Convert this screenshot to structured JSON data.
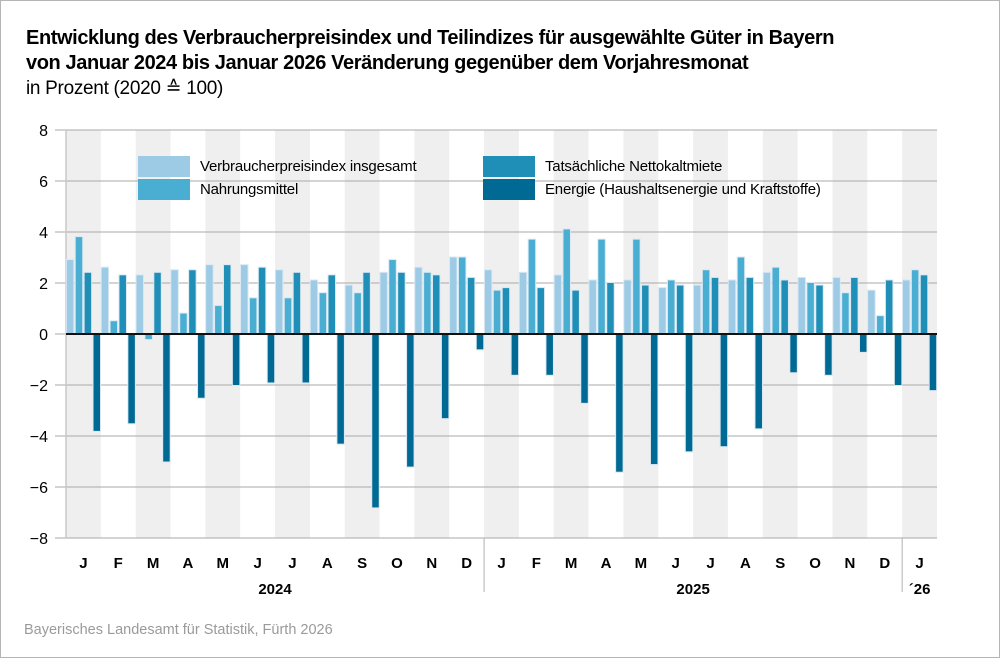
{
  "title": {
    "line1": "Entwicklung des Verbraucherpreisindex und Teilindizes für ausgewählte Güter in Bayern",
    "line2": "von Januar 2024 bis Januar 2026 Veränderung gegenüber dem Vorjahresmonat",
    "line3": "in Prozent (2020 ≙ 100)"
  },
  "footer": "Bayerisches Landesamt für Statistik, Fürth 2026",
  "colors": {
    "vpi": "#9dcbe6",
    "nahrung": "#4aaed3",
    "miete": "#1f8fb8",
    "energie": "#006a94",
    "band": "#efefef",
    "grid": "#a8a8a8",
    "zero": "#111111"
  },
  "chart_data": {
    "type": "bar",
    "title": "Entwicklung des Verbraucherpreisindex und Teilindizes für ausgewählte Güter in Bayern von Januar 2024 bis Januar 2026 Veränderung gegenüber dem Vorjahresmonat",
    "ylabel": "in Prozent (2020 ≙ 100)",
    "xlabel": "",
    "ylim": [
      -8,
      8
    ],
    "yticks": [
      8,
      6,
      4,
      2,
      0,
      -2,
      -4,
      -6,
      -8
    ],
    "ytick_labels": [
      "8",
      "6",
      "4",
      "2",
      "0",
      "−2",
      "−4",
      "−6",
      "−8"
    ],
    "grid": true,
    "legend_position": "top-inside",
    "categories": [
      "J",
      "F",
      "M",
      "A",
      "M",
      "J",
      "J",
      "A",
      "S",
      "O",
      "N",
      "D",
      "J",
      "F",
      "M",
      "A",
      "M",
      "J",
      "J",
      "A",
      "S",
      "O",
      "N",
      "D",
      "J"
    ],
    "year_groups": [
      {
        "label": "2024",
        "start": 0,
        "end": 11
      },
      {
        "label": "2025",
        "start": 12,
        "end": 23
      },
      {
        "label": "´26",
        "start": 24,
        "end": 24
      }
    ],
    "series": [
      {
        "name": "Verbraucherpreisindex insgesamt",
        "key": "vpi",
        "values": [
          2.9,
          2.6,
          2.3,
          2.5,
          2.7,
          2.7,
          2.5,
          2.1,
          1.9,
          2.4,
          2.6,
          3.0,
          2.5,
          2.4,
          2.3,
          2.1,
          2.1,
          1.8,
          1.9,
          2.1,
          2.4,
          2.2,
          2.2,
          1.7,
          2.1
        ]
      },
      {
        "name": "Nahrungsmittel",
        "key": "nahrung",
        "values": [
          3.8,
          0.5,
          -0.2,
          0.8,
          1.1,
          1.4,
          1.4,
          1.6,
          1.6,
          2.9,
          2.4,
          3.0,
          1.7,
          3.7,
          4.1,
          3.7,
          3.7,
          2.1,
          2.5,
          3.0,
          2.6,
          2.0,
          1.6,
          0.7,
          2.5
        ]
      },
      {
        "name": "Tatsächliche Nettokaltmiete",
        "key": "miete",
        "values": [
          2.4,
          2.3,
          2.4,
          2.5,
          2.7,
          2.6,
          2.4,
          2.3,
          2.4,
          2.4,
          2.3,
          2.2,
          1.8,
          1.8,
          1.7,
          2.0,
          1.9,
          1.9,
          2.2,
          2.2,
          2.1,
          1.9,
          2.2,
          2.1,
          2.3
        ]
      },
      {
        "name": "Energie (Haushaltsenergie und Kraftstoffe)",
        "key": "energie",
        "values": [
          -3.8,
          -3.5,
          -5.0,
          -2.5,
          -2.0,
          -1.9,
          -1.9,
          -4.3,
          -6.8,
          -5.2,
          -3.3,
          -0.6,
          -1.6,
          -1.6,
          -2.7,
          -5.4,
          -5.1,
          -4.6,
          -4.4,
          -3.7,
          -1.5,
          -1.6,
          -0.7,
          -2.0,
          -2.2
        ]
      }
    ]
  }
}
